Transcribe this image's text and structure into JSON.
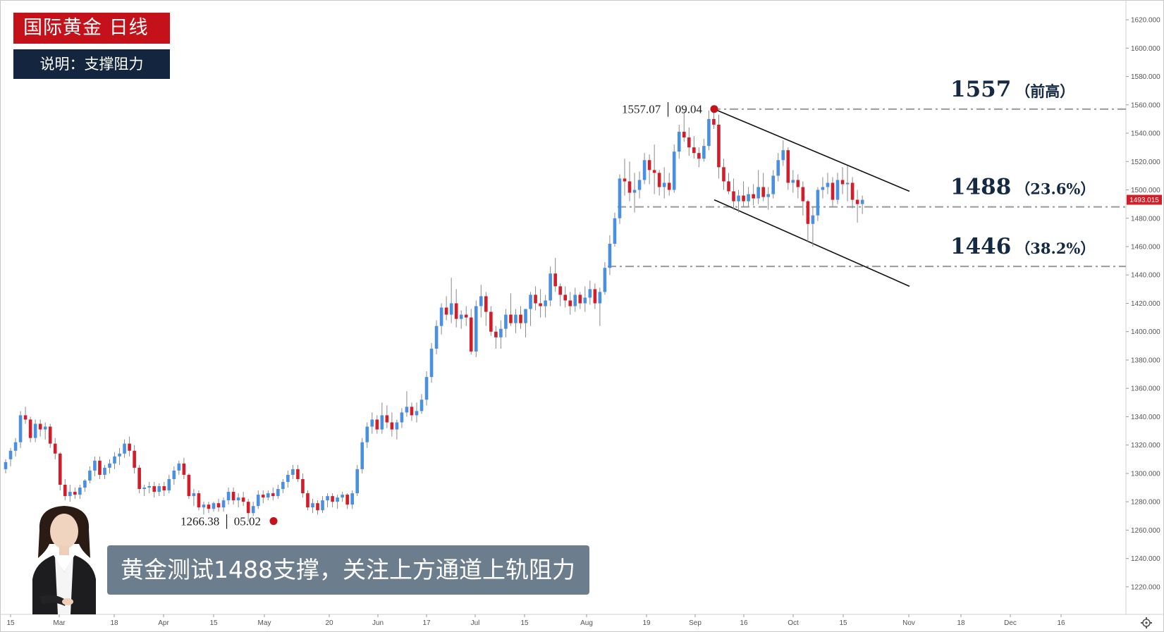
{
  "header": {
    "title": "国际黄金  日线",
    "subtitle": "说明：支撑阻力"
  },
  "caption": "黄金测试1488支撑，关注上方通道上轨阻力",
  "colors": {
    "up": "#4a90e2",
    "down": "#d31d28",
    "title_bg": "#c4111a",
    "subtitle_bg": "#14263f",
    "caption_bg": "#6c7d8d",
    "level_line": "#9a9a9a",
    "channel": "#111111",
    "price_tag": "#d31d28",
    "marker": "#c4111a"
  },
  "chart_data": {
    "type": "candlestick",
    "y_axis": {
      "range": [
        1210,
        1626
      ],
      "ticks": [
        "1220.000",
        "1240.000",
        "1260.000",
        "1280.000",
        "1300.000",
        "1320.000",
        "1340.000",
        "1360.000",
        "1380.000",
        "1400.000",
        "1420.000",
        "1440.000",
        "1460.000",
        "1480.000",
        "1500.000",
        "1520.000",
        "1540.000",
        "1560.000",
        "1580.000",
        "1600.000",
        "1620.000"
      ]
    },
    "x_axis": {
      "ticks": [
        "15",
        "Mar",
        "18",
        "Apr",
        "15",
        "May",
        "20",
        "Jun",
        "17",
        "Jul",
        "15",
        "Aug",
        "19",
        "Sep",
        "16",
        "Oct",
        "15",
        "Nov",
        "18",
        "Dec",
        "16"
      ]
    },
    "last_price": "1493.015",
    "levels": [
      {
        "value": 1557,
        "label": "1557",
        "note": "（前高）"
      },
      {
        "value": 1488,
        "label": "1488",
        "note": "（23.6%）"
      },
      {
        "value": 1446,
        "label": "1446",
        "note": "（38.2%）"
      }
    ],
    "annotations": [
      {
        "text": "1557.07 │ 09.04",
        "price": 1557.07,
        "date": "09.04"
      },
      {
        "text": "1266.38 │ 05.02",
        "price": 1266.38,
        "date": "05.02"
      }
    ],
    "channel": {
      "upper": [
        {
          "date": "09.04",
          "price": 1557
        },
        {
          "date": "2019-10-31",
          "price": 1499
        }
      ],
      "lower": [
        {
          "date": "09.04",
          "price": 1493
        },
        {
          "date": "2019-10-31",
          "price": 1432
        }
      ]
    },
    "ohlc": [
      [
        1303,
        1310,
        1300,
        1308
      ],
      [
        1310,
        1318,
        1305,
        1316
      ],
      [
        1316,
        1325,
        1312,
        1322
      ],
      [
        1322,
        1344,
        1318,
        1341
      ],
      [
        1341,
        1347,
        1335,
        1338
      ],
      [
        1338,
        1340,
        1322,
        1325
      ],
      [
        1325,
        1338,
        1322,
        1335
      ],
      [
        1335,
        1338,
        1326,
        1331
      ],
      [
        1331,
        1336,
        1324,
        1333
      ],
      [
        1333,
        1335,
        1318,
        1321
      ],
      [
        1321,
        1325,
        1310,
        1314
      ],
      [
        1314,
        1315,
        1288,
        1292
      ],
      [
        1292,
        1296,
        1281,
        1284
      ],
      [
        1284,
        1292,
        1280,
        1287
      ],
      [
        1287,
        1290,
        1282,
        1285
      ],
      [
        1285,
        1292,
        1282,
        1290
      ],
      [
        1290,
        1296,
        1287,
        1295
      ],
      [
        1295,
        1305,
        1293,
        1302
      ],
      [
        1302,
        1312,
        1298,
        1309
      ],
      [
        1309,
        1312,
        1296,
        1299
      ],
      [
        1299,
        1306,
        1296,
        1304
      ],
      [
        1304,
        1310,
        1300,
        1307
      ],
      [
        1307,
        1315,
        1303,
        1312
      ],
      [
        1312,
        1318,
        1306,
        1314
      ],
      [
        1314,
        1324,
        1311,
        1321
      ],
      [
        1321,
        1326,
        1312,
        1316
      ],
      [
        1316,
        1320,
        1300,
        1304
      ],
      [
        1304,
        1306,
        1286,
        1289
      ],
      [
        1289,
        1292,
        1284,
        1290
      ],
      [
        1290,
        1294,
        1286,
        1291
      ],
      [
        1291,
        1294,
        1283,
        1287
      ],
      [
        1287,
        1293,
        1284,
        1291
      ],
      [
        1291,
        1294,
        1284,
        1288
      ],
      [
        1288,
        1299,
        1286,
        1296
      ],
      [
        1296,
        1305,
        1292,
        1302
      ],
      [
        1302,
        1309,
        1299,
        1307
      ],
      [
        1307,
        1311,
        1296,
        1299
      ],
      [
        1299,
        1300,
        1282,
        1284
      ],
      [
        1284,
        1289,
        1277,
        1286
      ],
      [
        1286,
        1288,
        1274,
        1276
      ],
      [
        1276,
        1280,
        1271,
        1278
      ],
      [
        1278,
        1280,
        1272,
        1275
      ],
      [
        1275,
        1280,
        1273,
        1279
      ],
      [
        1279,
        1282,
        1273,
        1276
      ],
      [
        1276,
        1283,
        1273,
        1281
      ],
      [
        1281,
        1290,
        1278,
        1287
      ],
      [
        1287,
        1290,
        1278,
        1281
      ],
      [
        1281,
        1286,
        1276,
        1283
      ],
      [
        1283,
        1287,
        1277,
        1280
      ],
      [
        1280,
        1282,
        1266,
        1272
      ],
      [
        1272,
        1280,
        1270,
        1277
      ],
      [
        1277,
        1288,
        1275,
        1285
      ],
      [
        1285,
        1288,
        1279,
        1283
      ],
      [
        1283,
        1288,
        1281,
        1286
      ],
      [
        1286,
        1290,
        1281,
        1284
      ],
      [
        1284,
        1292,
        1282,
        1289
      ],
      [
        1289,
        1296,
        1286,
        1294
      ],
      [
        1294,
        1302,
        1290,
        1299
      ],
      [
        1299,
        1306,
        1296,
        1303
      ],
      [
        1303,
        1306,
        1294,
        1296
      ],
      [
        1296,
        1300,
        1283,
        1286
      ],
      [
        1286,
        1288,
        1274,
        1276
      ],
      [
        1276,
        1282,
        1272,
        1279
      ],
      [
        1279,
        1281,
        1271,
        1274
      ],
      [
        1274,
        1284,
        1272,
        1281
      ],
      [
        1281,
        1286,
        1276,
        1284
      ],
      [
        1284,
        1286,
        1276,
        1280
      ],
      [
        1280,
        1285,
        1275,
        1283
      ],
      [
        1283,
        1287,
        1280,
        1285
      ],
      [
        1285,
        1286,
        1275,
        1278
      ],
      [
        1278,
        1288,
        1275,
        1286
      ],
      [
        1286,
        1306,
        1284,
        1303
      ],
      [
        1303,
        1325,
        1300,
        1322
      ],
      [
        1322,
        1336,
        1318,
        1333
      ],
      [
        1333,
        1343,
        1328,
        1338
      ],
      [
        1338,
        1341,
        1328,
        1331
      ],
      [
        1331,
        1350,
        1328,
        1341
      ],
      [
        1341,
        1348,
        1332,
        1336
      ],
      [
        1336,
        1343,
        1326,
        1331
      ],
      [
        1331,
        1338,
        1324,
        1336
      ],
      [
        1336,
        1346,
        1332,
        1343
      ],
      [
        1343,
        1358,
        1340,
        1347
      ],
      [
        1347,
        1350,
        1337,
        1341
      ],
      [
        1341,
        1350,
        1336,
        1344
      ],
      [
        1344,
        1356,
        1342,
        1352
      ],
      [
        1352,
        1372,
        1348,
        1368
      ],
      [
        1368,
        1392,
        1364,
        1388
      ],
      [
        1388,
        1408,
        1384,
        1404
      ],
      [
        1404,
        1420,
        1398,
        1417
      ],
      [
        1417,
        1425,
        1408,
        1412
      ],
      [
        1412,
        1438,
        1406,
        1420
      ],
      [
        1420,
        1430,
        1403,
        1409
      ],
      [
        1409,
        1415,
        1402,
        1412
      ],
      [
        1412,
        1418,
        1404,
        1410
      ],
      [
        1410,
        1416,
        1384,
        1386
      ],
      [
        1386,
        1422,
        1382,
        1418
      ],
      [
        1418,
        1433,
        1410,
        1425
      ],
      [
        1425,
        1428,
        1404,
        1414
      ],
      [
        1414,
        1418,
        1397,
        1400
      ],
      [
        1400,
        1404,
        1388,
        1396
      ],
      [
        1396,
        1408,
        1388,
        1402
      ],
      [
        1402,
        1416,
        1396,
        1412
      ],
      [
        1412,
        1427,
        1404,
        1406
      ],
      [
        1406,
        1416,
        1399,
        1412
      ],
      [
        1412,
        1418,
        1402,
        1406
      ],
      [
        1406,
        1414,
        1396,
        1416
      ],
      [
        1416,
        1428,
        1404,
        1426
      ],
      [
        1426,
        1432,
        1415,
        1420
      ],
      [
        1420,
        1430,
        1410,
        1418
      ],
      [
        1418,
        1426,
        1410,
        1422
      ],
      [
        1422,
        1446,
        1418,
        1441
      ],
      [
        1441,
        1452,
        1428,
        1432
      ],
      [
        1432,
        1434,
        1418,
        1426
      ],
      [
        1426,
        1432,
        1417,
        1422
      ],
      [
        1422,
        1428,
        1412,
        1418
      ],
      [
        1418,
        1431,
        1414,
        1426
      ],
      [
        1426,
        1428,
        1416,
        1420
      ],
      [
        1420,
        1432,
        1414,
        1424
      ],
      [
        1424,
        1436,
        1419,
        1430
      ],
      [
        1430,
        1434,
        1416,
        1420
      ],
      [
        1420,
        1431,
        1404,
        1428
      ],
      [
        1428,
        1449,
        1426,
        1445
      ],
      [
        1445,
        1468,
        1440,
        1462
      ],
      [
        1462,
        1484,
        1460,
        1480
      ],
      [
        1480,
        1511,
        1476,
        1508
      ],
      [
        1508,
        1522,
        1496,
        1506
      ],
      [
        1506,
        1520,
        1492,
        1498
      ],
      [
        1498,
        1512,
        1484,
        1500
      ],
      [
        1500,
        1513,
        1494,
        1507
      ],
      [
        1507,
        1526,
        1504,
        1521
      ],
      [
        1521,
        1525,
        1504,
        1514
      ],
      [
        1514,
        1532,
        1497,
        1512
      ],
      [
        1512,
        1514,
        1496,
        1502
      ],
      [
        1502,
        1516,
        1494,
        1505
      ],
      [
        1505,
        1512,
        1496,
        1500
      ],
      [
        1500,
        1532,
        1498,
        1527
      ],
      [
        1527,
        1546,
        1522,
        1541
      ],
      [
        1541,
        1557,
        1534,
        1537
      ],
      [
        1537,
        1544,
        1524,
        1530
      ],
      [
        1530,
        1538,
        1522,
        1526
      ],
      [
        1526,
        1530,
        1516,
        1522
      ],
      [
        1522,
        1536,
        1520,
        1531
      ],
      [
        1531,
        1556,
        1528,
        1550
      ],
      [
        1550,
        1557,
        1543,
        1546
      ],
      [
        1546,
        1553,
        1508,
        1516
      ],
      [
        1516,
        1522,
        1500,
        1506
      ],
      [
        1506,
        1512,
        1497,
        1499
      ],
      [
        1499,
        1508,
        1486,
        1492
      ],
      [
        1492,
        1500,
        1484,
        1496
      ],
      [
        1496,
        1506,
        1488,
        1492
      ],
      [
        1492,
        1502,
        1488,
        1497
      ],
      [
        1497,
        1504,
        1489,
        1494
      ],
      [
        1494,
        1514,
        1490,
        1502
      ],
      [
        1502,
        1512,
        1492,
        1495
      ],
      [
        1495,
        1502,
        1486,
        1497
      ],
      [
        1497,
        1514,
        1494,
        1510
      ],
      [
        1510,
        1526,
        1506,
        1521
      ],
      [
        1521,
        1535,
        1517,
        1528
      ],
      [
        1528,
        1530,
        1500,
        1505
      ],
      [
        1505,
        1514,
        1498,
        1507
      ],
      [
        1507,
        1511,
        1494,
        1502
      ],
      [
        1502,
        1506,
        1482,
        1492
      ],
      [
        1492,
        1493,
        1463,
        1476
      ],
      [
        1476,
        1488,
        1460,
        1482
      ],
      [
        1482,
        1502,
        1478,
        1500
      ],
      [
        1500,
        1509,
        1494,
        1502
      ],
      [
        1502,
        1512,
        1497,
        1505
      ],
      [
        1505,
        1509,
        1488,
        1493
      ],
      [
        1493,
        1512,
        1490,
        1507
      ],
      [
        1507,
        1516,
        1497,
        1504
      ],
      [
        1504,
        1517,
        1492,
        1505
      ],
      [
        1505,
        1509,
        1487,
        1493
      ],
      [
        1493,
        1500,
        1477,
        1490
      ],
      [
        1490,
        1496,
        1483,
        1493
      ]
    ]
  }
}
